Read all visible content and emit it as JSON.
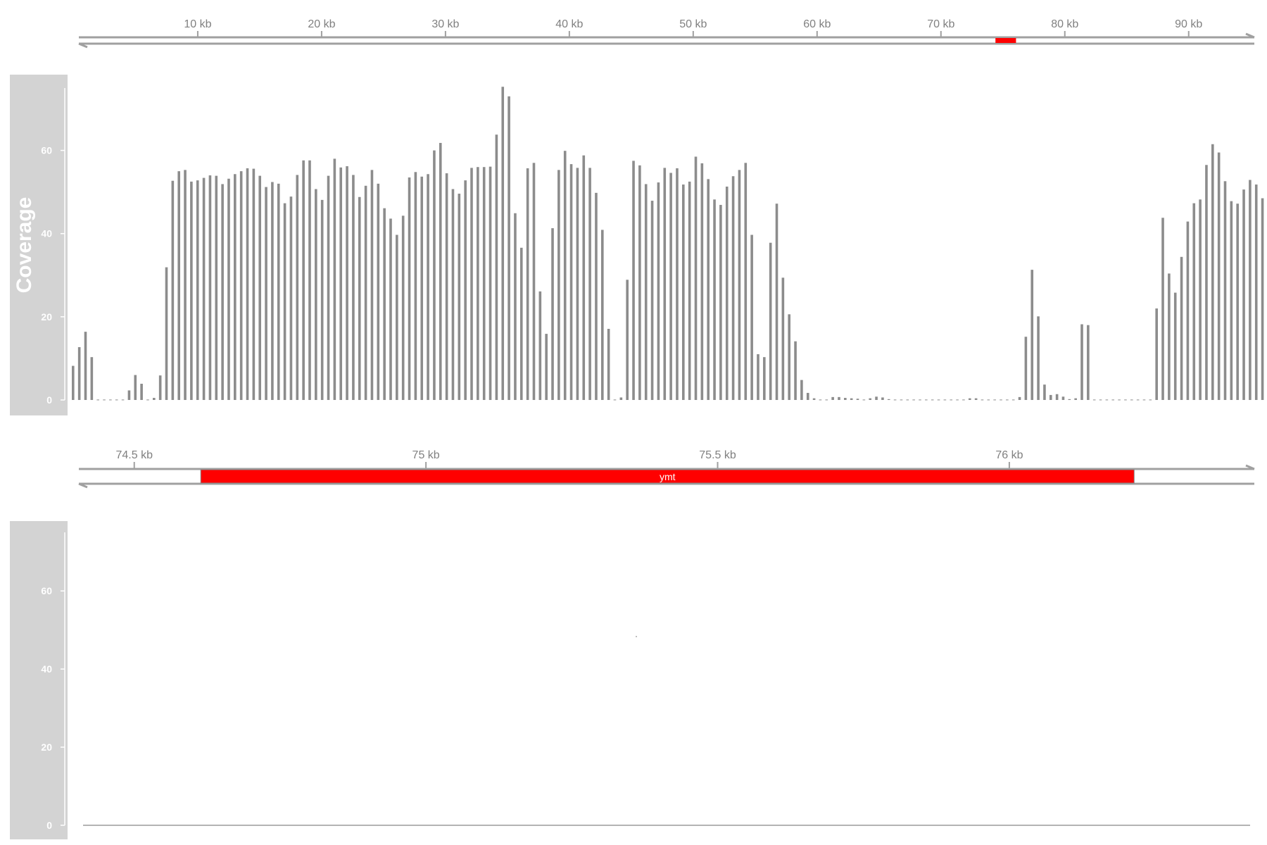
{
  "colors": {
    "panel_bg": "#d3d3d3",
    "axis": "#a0a0a0",
    "bar": "#8c8c8c",
    "gene": "#ff0000"
  },
  "chart_data": [
    {
      "type": "bar",
      "panel": "ideogram-axis",
      "xlim_kb": [
        0.4,
        95.3
      ],
      "tick_labels": [
        "10 kb",
        "20 kb",
        "30 kb",
        "40 kb",
        "50 kb",
        "60 kb",
        "70 kb",
        "80 kb",
        "90 kb"
      ],
      "tick_values_kb": [
        10,
        20,
        30,
        40,
        50,
        60,
        70,
        80,
        90
      ],
      "highlight_kb": [
        74.4,
        76.06
      ]
    },
    {
      "type": "bar",
      "panel": "coverage-overview",
      "ylabel": "Coverage",
      "ylim": [
        0,
        75
      ],
      "yticks": [
        0,
        20,
        40,
        60
      ],
      "yticks_labels": [
        "0",
        "20",
        "40",
        "60"
      ],
      "x_start_kb": 0.4,
      "bin_kb": 0.5,
      "values": [
        8.2,
        12.7,
        16.4,
        10.3,
        0.1,
        0.1,
        0.1,
        0.1,
        0.1,
        2.3,
        6.0,
        3.9,
        0.1,
        0.5,
        5.9,
        31.9,
        52.7,
        55.0,
        55.3,
        52.5,
        52.8,
        53.4,
        54.0,
        53.9,
        51.9,
        53.2,
        54.3,
        55.0,
        55.7,
        55.6,
        53.9,
        51.2,
        52.4,
        52.0,
        47.3,
        48.9,
        54.1,
        57.6,
        57.6,
        50.7,
        48.1,
        53.9,
        58.0,
        55.9,
        56.2,
        54.1,
        48.8,
        51.5,
        55.3,
        52.0,
        46.1,
        43.6,
        39.7,
        44.3,
        53.5,
        54.8,
        53.7,
        54.3,
        60.0,
        61.8,
        54.5,
        50.7,
        49.6,
        52.8,
        55.8,
        56.0,
        56.0,
        56.1,
        63.8,
        75.3,
        73.0,
        44.9,
        36.6,
        55.7,
        57.0,
        26.1,
        15.9,
        41.3,
        55.3,
        59.9,
        56.7,
        55.8,
        58.8,
        55.8,
        49.8,
        40.9,
        17.1,
        0.1,
        0.6,
        28.9,
        57.5,
        56.4,
        51.9,
        47.9,
        52.3,
        55.8,
        54.6,
        55.7,
        51.8,
        52.5,
        58.5,
        56.9,
        53.1,
        48.2,
        46.9,
        51.3,
        53.8,
        55.3,
        57.0,
        39.7,
        11.0,
        10.3,
        37.8,
        47.2,
        29.4,
        20.6,
        14.1,
        4.8,
        1.7,
        0.4,
        0.1,
        0.1,
        0.7,
        0.7,
        0.5,
        0.4,
        0.3,
        0.1,
        0.4,
        0.8,
        0.6,
        0.2,
        0.1,
        0.1,
        0.1,
        0.1,
        0.1,
        0.1,
        0.1,
        0.1,
        0.1,
        0.1,
        0.1,
        0.1,
        0.4,
        0.4,
        0.1,
        0.1,
        0.1,
        0.1,
        0.1,
        0.1,
        0.7,
        15.2,
        31.3,
        20.1,
        3.7,
        1.2,
        1.4,
        0.8,
        0.2,
        0.4,
        18.2,
        18.0,
        0.1,
        0.1,
        0.1,
        0.1,
        0.1,
        0.1,
        0.1,
        0.1,
        0.1,
        0.1,
        22.0,
        43.8,
        30.4,
        25.8,
        34.4,
        42.9,
        47.3,
        48.2,
        56.5,
        61.5,
        59.5,
        52.6,
        47.8,
        47.2,
        50.6,
        52.9,
        51.8,
        48.5
      ]
    },
    {
      "type": "bar",
      "panel": "zoom-axis",
      "xlim_kb": [
        74.405,
        76.42
      ],
      "tick_labels": [
        "74.5 kb",
        "75 kb",
        "75.5 kb",
        "76 kb"
      ],
      "tick_values_kb": [
        74.5,
        75.0,
        75.5,
        76.0
      ],
      "gene": {
        "label": "ymt",
        "start_kb": 74.614,
        "end_kb": 76.214
      }
    },
    {
      "type": "bar",
      "panel": "coverage-zoom",
      "ylim": [
        0,
        75
      ],
      "yticks": [
        0,
        20,
        40,
        60
      ],
      "yticks_labels": [
        "0",
        "20",
        "40",
        "60"
      ],
      "values": [
        0
      ]
    }
  ]
}
